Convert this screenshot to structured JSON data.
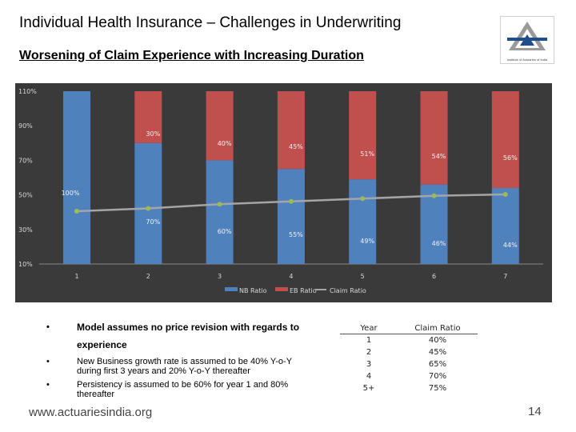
{
  "slide": {
    "title": "Individual Health Insurance – Challenges in Underwriting",
    "subtitle": "Worsening of Claim Experience with Increasing Duration",
    "logo_caption": "Institute of Actuaries of India",
    "url": "www.actuariesindia.org",
    "page_number": "14",
    "bullets": [
      {
        "line1": "Model assumes no price revision with regards to",
        "line2": "experience"
      },
      {
        "text": "New Business growth rate is assumed to be 40% Y-o-Y during first 3 years and 20% Y-o-Y thereafter"
      },
      {
        "text": "Persistency is assumed to be 60% for year 1 and 80% thereafter"
      }
    ],
    "bullet_char": "•"
  },
  "claim_table": {
    "headers": [
      "Year",
      "Claim Ratio"
    ],
    "rows": [
      [
        "1",
        "40%"
      ],
      [
        "2",
        "45%"
      ],
      [
        "3",
        "65%"
      ],
      [
        "4",
        "70%"
      ],
      [
        "5+",
        "75%"
      ]
    ]
  },
  "chart_data": {
    "type": "bar",
    "stacked": true,
    "categories": [
      "1",
      "2",
      "3",
      "4",
      "5",
      "6",
      "7"
    ],
    "y_tick_labels": [
      "110%",
      "90%",
      "70%",
      "50%",
      "30%",
      "10%"
    ],
    "y_ticks": [
      110,
      90,
      70,
      50,
      30,
      10
    ],
    "ylim": [
      10,
      110
    ],
    "series": [
      {
        "name": "NB Ratio",
        "values": [
          100,
          70,
          60,
          55,
          49,
          46,
          44
        ],
        "labels": [
          "100%",
          "70%",
          "60%",
          "55%",
          "49%",
          "46%",
          "44%"
        ],
        "color": "#4f81bd"
      },
      {
        "name": "EB Ratio",
        "values": [
          0,
          30,
          40,
          45,
          51,
          54,
          56
        ],
        "labels": [
          "",
          "30%",
          "40%",
          "45%",
          "51%",
          "54%",
          "56%"
        ],
        "color": "#c0504d"
      },
      {
        "name": "Claim Ratio",
        "type": "line",
        "values": [
          40,
          42,
          45,
          47,
          49,
          51,
          52
        ],
        "color": "#a5a5a5",
        "marker_color": "#9bbb59"
      }
    ],
    "legend_position": "bottom",
    "grid": false,
    "background": "#3a3a3a"
  }
}
